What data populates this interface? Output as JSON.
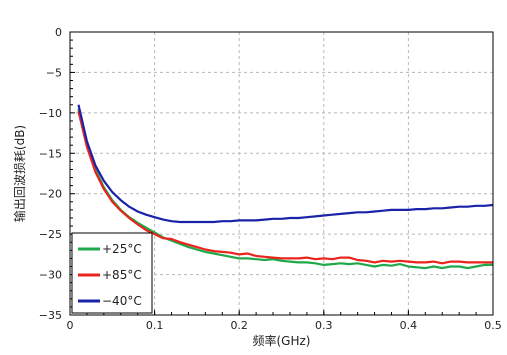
{
  "chart_data": {
    "type": "line",
    "title": "",
    "xlabel": "频率(GHz)",
    "ylabel": "输出回波损耗(dB)",
    "xlim": [
      0,
      0.5
    ],
    "ylim": [
      -35,
      0
    ],
    "xticks": [
      0,
      0.1,
      0.2,
      0.3,
      0.4,
      0.5
    ],
    "xtick_labels": [
      "0",
      "0.1",
      "0.2",
      "0.3",
      "0.4",
      "0.5"
    ],
    "yticks": [
      0,
      -5,
      -10,
      -15,
      -20,
      -25,
      -30,
      -35
    ],
    "ytick_labels": [
      "0",
      "−5",
      "−10",
      "−15",
      "−20",
      "−25",
      "−30",
      "−35"
    ],
    "grid": true,
    "legend_position": "bottom-left",
    "series": [
      {
        "name": "+25°C",
        "color": "#1fa84a",
        "points": [
          [
            0.01,
            -9.5
          ],
          [
            0.02,
            -14.0
          ],
          [
            0.03,
            -17.0
          ],
          [
            0.04,
            -19.2
          ],
          [
            0.05,
            -20.8
          ],
          [
            0.06,
            -22.0
          ],
          [
            0.07,
            -22.9
          ],
          [
            0.08,
            -23.6
          ],
          [
            0.09,
            -24.2
          ],
          [
            0.1,
            -24.8
          ],
          [
            0.11,
            -25.4
          ],
          [
            0.12,
            -25.8
          ],
          [
            0.13,
            -26.2
          ],
          [
            0.14,
            -26.6
          ],
          [
            0.15,
            -26.9
          ],
          [
            0.16,
            -27.2
          ],
          [
            0.17,
            -27.4
          ],
          [
            0.18,
            -27.6
          ],
          [
            0.19,
            -27.8
          ],
          [
            0.2,
            -28.0
          ],
          [
            0.21,
            -28.0
          ],
          [
            0.22,
            -28.1
          ],
          [
            0.23,
            -28.2
          ],
          [
            0.24,
            -28.1
          ],
          [
            0.25,
            -28.3
          ],
          [
            0.26,
            -28.4
          ],
          [
            0.27,
            -28.5
          ],
          [
            0.28,
            -28.5
          ],
          [
            0.29,
            -28.6
          ],
          [
            0.3,
            -28.8
          ],
          [
            0.31,
            -28.7
          ],
          [
            0.32,
            -28.6
          ],
          [
            0.33,
            -28.7
          ],
          [
            0.34,
            -28.6
          ],
          [
            0.35,
            -28.8
          ],
          [
            0.36,
            -29.0
          ],
          [
            0.37,
            -28.8
          ],
          [
            0.38,
            -28.9
          ],
          [
            0.39,
            -28.7
          ],
          [
            0.4,
            -29.0
          ],
          [
            0.41,
            -29.1
          ],
          [
            0.42,
            -29.2
          ],
          [
            0.43,
            -29.0
          ],
          [
            0.44,
            -29.2
          ],
          [
            0.45,
            -29.0
          ],
          [
            0.46,
            -29.0
          ],
          [
            0.47,
            -29.2
          ],
          [
            0.48,
            -29.0
          ],
          [
            0.49,
            -28.8
          ],
          [
            0.5,
            -28.8
          ]
        ]
      },
      {
        "name": "+85°C",
        "color": "#e8241c",
        "points": [
          [
            0.01,
            -9.8
          ],
          [
            0.02,
            -14.2
          ],
          [
            0.03,
            -17.3
          ],
          [
            0.04,
            -19.4
          ],
          [
            0.05,
            -21.0
          ],
          [
            0.06,
            -22.1
          ],
          [
            0.07,
            -23.0
          ],
          [
            0.08,
            -23.8
          ],
          [
            0.09,
            -24.5
          ],
          [
            0.1,
            -25.0
          ],
          [
            0.11,
            -25.5
          ],
          [
            0.12,
            -25.6
          ],
          [
            0.13,
            -26.0
          ],
          [
            0.14,
            -26.3
          ],
          [
            0.15,
            -26.6
          ],
          [
            0.16,
            -26.9
          ],
          [
            0.17,
            -27.1
          ],
          [
            0.18,
            -27.2
          ],
          [
            0.19,
            -27.3
          ],
          [
            0.2,
            -27.5
          ],
          [
            0.21,
            -27.4
          ],
          [
            0.22,
            -27.7
          ],
          [
            0.23,
            -27.8
          ],
          [
            0.24,
            -27.9
          ],
          [
            0.25,
            -28.0
          ],
          [
            0.26,
            -28.0
          ],
          [
            0.27,
            -28.0
          ],
          [
            0.28,
            -27.9
          ],
          [
            0.29,
            -28.1
          ],
          [
            0.3,
            -28.0
          ],
          [
            0.31,
            -28.1
          ],
          [
            0.32,
            -27.9
          ],
          [
            0.33,
            -27.9
          ],
          [
            0.34,
            -28.2
          ],
          [
            0.35,
            -28.3
          ],
          [
            0.36,
            -28.5
          ],
          [
            0.37,
            -28.3
          ],
          [
            0.38,
            -28.4
          ],
          [
            0.39,
            -28.3
          ],
          [
            0.4,
            -28.4
          ],
          [
            0.41,
            -28.5
          ],
          [
            0.42,
            -28.5
          ],
          [
            0.43,
            -28.4
          ],
          [
            0.44,
            -28.6
          ],
          [
            0.45,
            -28.4
          ],
          [
            0.46,
            -28.4
          ],
          [
            0.47,
            -28.5
          ],
          [
            0.48,
            -28.5
          ],
          [
            0.49,
            -28.5
          ],
          [
            0.5,
            -28.5
          ]
        ]
      },
      {
        "name": "−40°C",
        "color": "#1a23a8",
        "points": [
          [
            0.01,
            -9.0
          ],
          [
            0.02,
            -13.5
          ],
          [
            0.03,
            -16.5
          ],
          [
            0.04,
            -18.4
          ],
          [
            0.05,
            -19.8
          ],
          [
            0.06,
            -20.8
          ],
          [
            0.07,
            -21.6
          ],
          [
            0.08,
            -22.2
          ],
          [
            0.09,
            -22.6
          ],
          [
            0.1,
            -22.9
          ],
          [
            0.11,
            -23.2
          ],
          [
            0.12,
            -23.4
          ],
          [
            0.13,
            -23.5
          ],
          [
            0.14,
            -23.5
          ],
          [
            0.15,
            -23.5
          ],
          [
            0.16,
            -23.5
          ],
          [
            0.17,
            -23.5
          ],
          [
            0.18,
            -23.4
          ],
          [
            0.19,
            -23.4
          ],
          [
            0.2,
            -23.3
          ],
          [
            0.21,
            -23.3
          ],
          [
            0.22,
            -23.3
          ],
          [
            0.23,
            -23.2
          ],
          [
            0.24,
            -23.1
          ],
          [
            0.25,
            -23.1
          ],
          [
            0.26,
            -23.0
          ],
          [
            0.27,
            -23.0
          ],
          [
            0.28,
            -22.9
          ],
          [
            0.29,
            -22.8
          ],
          [
            0.3,
            -22.7
          ],
          [
            0.31,
            -22.6
          ],
          [
            0.32,
            -22.5
          ],
          [
            0.33,
            -22.4
          ],
          [
            0.34,
            -22.3
          ],
          [
            0.35,
            -22.3
          ],
          [
            0.36,
            -22.2
          ],
          [
            0.37,
            -22.1
          ],
          [
            0.38,
            -22.0
          ],
          [
            0.39,
            -22.0
          ],
          [
            0.4,
            -22.0
          ],
          [
            0.41,
            -21.9
          ],
          [
            0.42,
            -21.9
          ],
          [
            0.43,
            -21.8
          ],
          [
            0.44,
            -21.8
          ],
          [
            0.45,
            -21.7
          ],
          [
            0.46,
            -21.6
          ],
          [
            0.47,
            -21.6
          ],
          [
            0.48,
            -21.5
          ],
          [
            0.49,
            -21.5
          ],
          [
            0.5,
            -21.4
          ]
        ]
      }
    ]
  }
}
